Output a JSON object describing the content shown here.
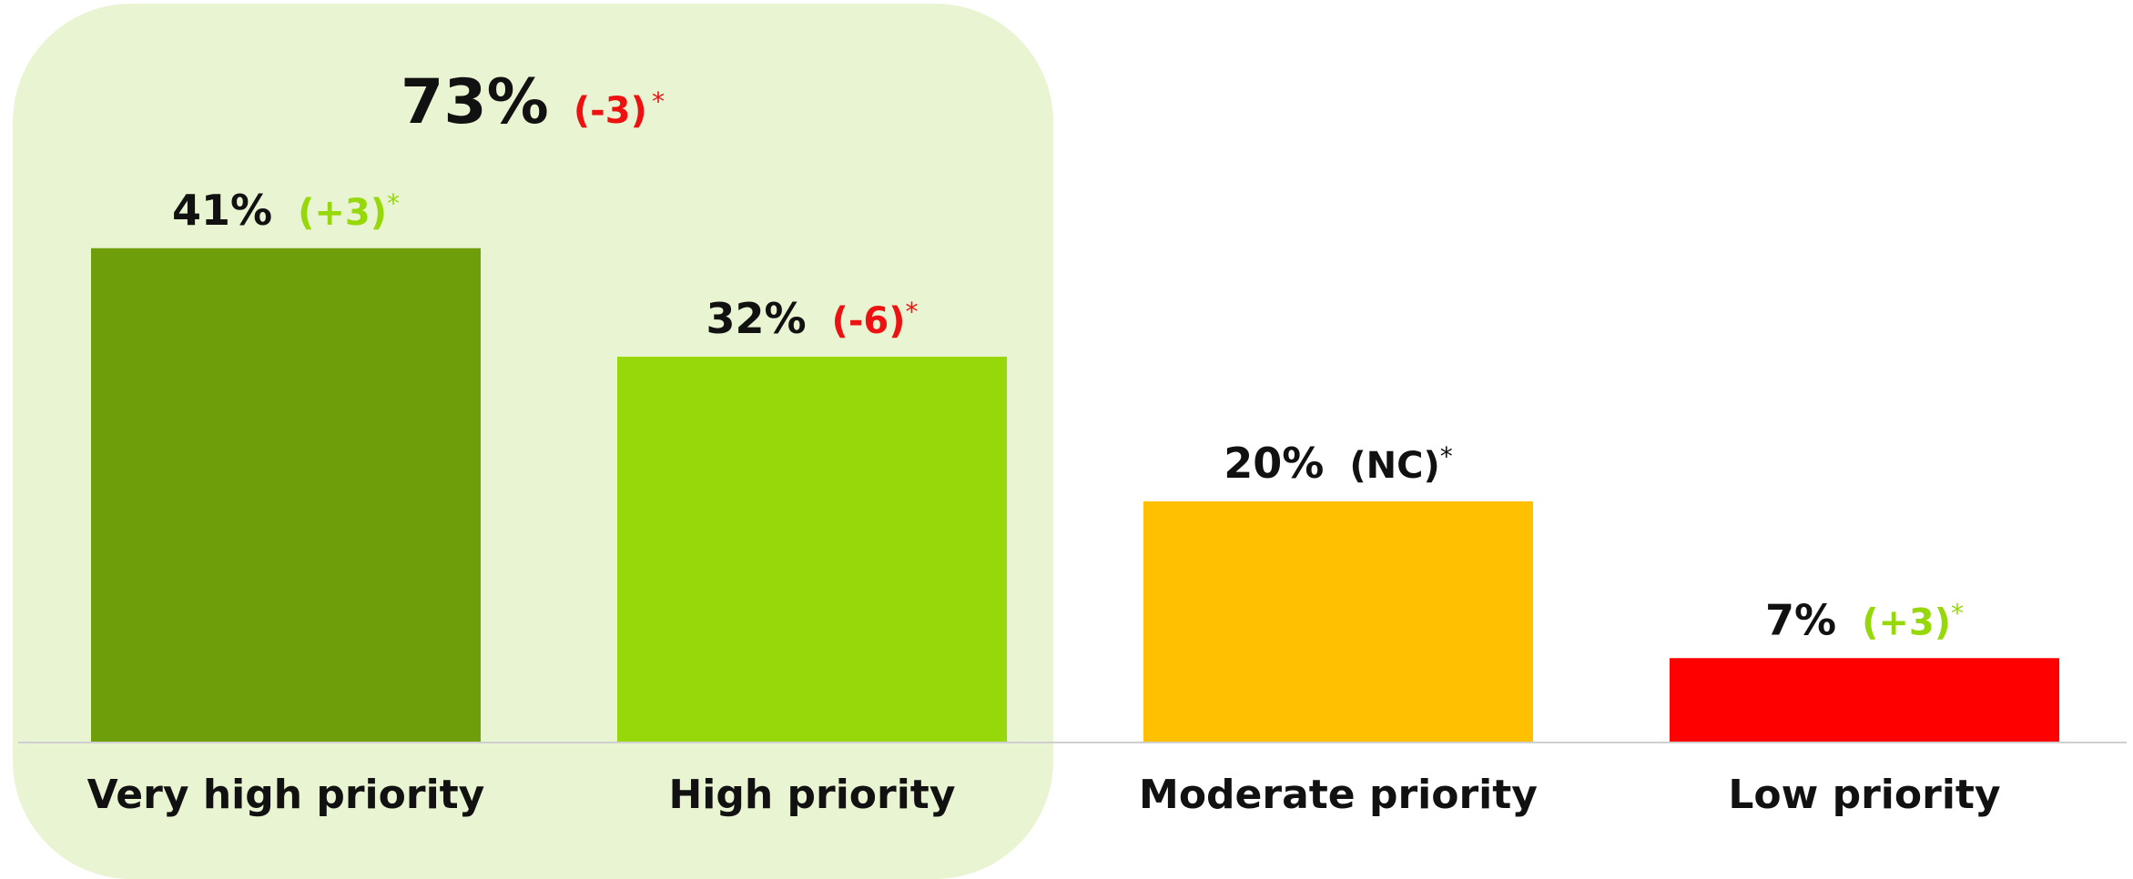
{
  "chart_data": {
    "type": "bar",
    "categories": [
      "Very high priority",
      "High priority",
      "Moderate priority",
      "Low priority"
    ],
    "values": [
      41,
      32,
      20,
      7
    ],
    "unit": "%",
    "changes": [
      "(+3)",
      "(-6)",
      "(NC)",
      "(+3)"
    ],
    "change_marker": "*",
    "colors": [
      "#6f9e0b",
      "#97d80b",
      "#fec000",
      "#ff0000"
    ],
    "change_colors": [
      "#97d80b",
      "#ee1111",
      "#111111",
      "#97d80b"
    ],
    "group_total": {
      "value": "73%",
      "change": "(-3)",
      "change_color": "#ee1111",
      "categories_included": [
        "Very high priority",
        "High priority"
      ],
      "highlight_color": "#e9f5d2"
    },
    "ylim": [
      0,
      45
    ],
    "title": "",
    "xlabel": "",
    "ylabel": "",
    "grid": false,
    "legend": "none"
  }
}
